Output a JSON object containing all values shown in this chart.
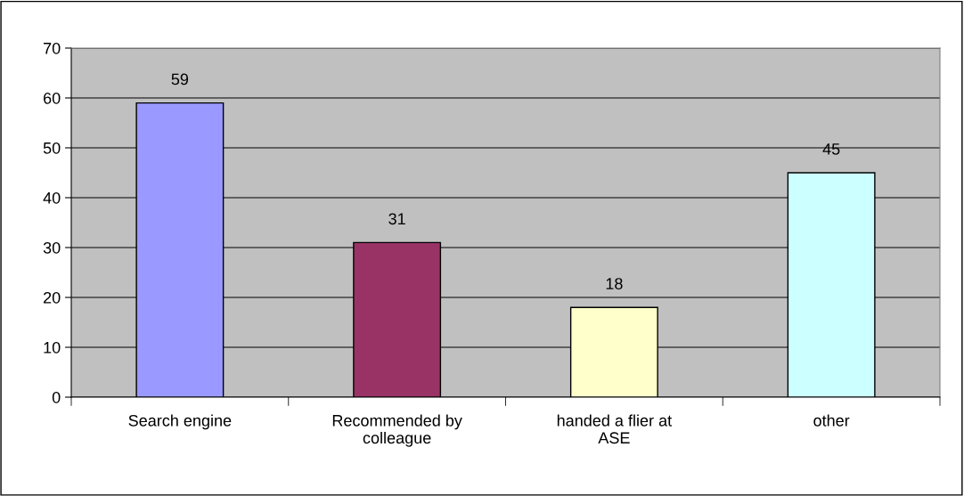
{
  "chart_data": {
    "type": "bar",
    "categories": [
      "Search engine",
      "Recommended by\ncolleague",
      "handed a flier at\nASE",
      "other"
    ],
    "values": [
      59,
      31,
      18,
      45
    ],
    "colors": [
      "#9999ff",
      "#993366",
      "#ffffcc",
      "#ccffff"
    ],
    "ylim": [
      0,
      70
    ],
    "yticks": [
      0,
      10,
      20,
      30,
      40,
      50,
      60,
      70
    ],
    "grid": "y",
    "data_labels": true,
    "legend": false
  }
}
